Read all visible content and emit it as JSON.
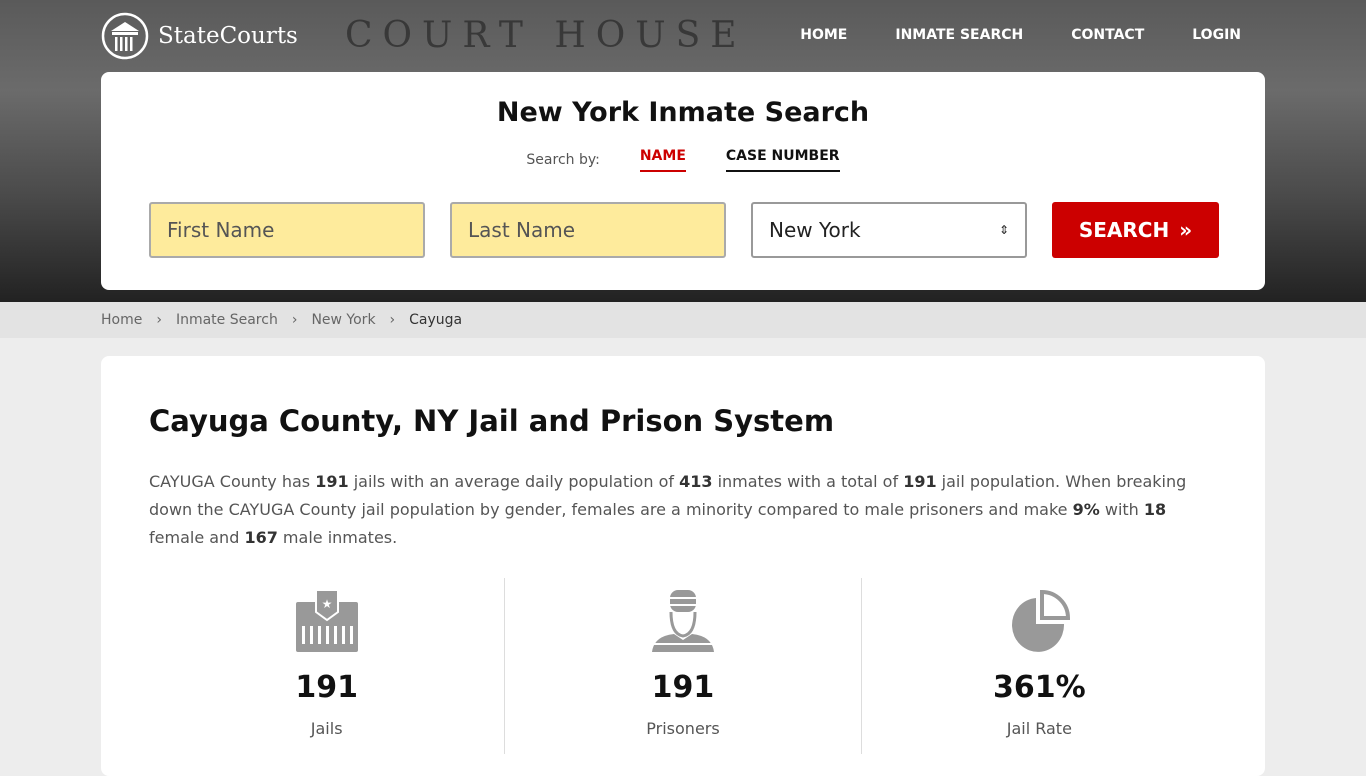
{
  "header": {
    "brand": "StateCourts",
    "bg_text": "COURT HOUSE",
    "nav": [
      "HOME",
      "INMATE SEARCH",
      "CONTACT",
      "LOGIN"
    ]
  },
  "search": {
    "title": "New York Inmate Search",
    "search_by": "Search by:",
    "tabs": [
      "NAME",
      "CASE NUMBER"
    ],
    "first_name_placeholder": "First Name",
    "last_name_placeholder": "Last Name",
    "state": "New York",
    "button": "SEARCH"
  },
  "breadcrumb": [
    "Home",
    "Inmate Search",
    "New York",
    "Cayuga"
  ],
  "main": {
    "title": "Cayuga County, NY Jail and Prison System",
    "p": [
      "CAYUGA County has ",
      "191",
      " jails with an average daily population of ",
      "413",
      " inmates with a total of ",
      "191",
      " jail population. When breaking down the CAYUGA County jail population by gender, females are a minority compared to male prisoners and make ",
      "9%",
      " with ",
      "18",
      " female and ",
      "167",
      " male inmates."
    ],
    "stats": [
      {
        "value": "191",
        "label": "Jails",
        "icon": "jail-icon"
      },
      {
        "value": "191",
        "label": "Prisoners",
        "icon": "prisoner-icon"
      },
      {
        "value": "361%",
        "label": "Jail Rate",
        "icon": "pie-chart-icon"
      }
    ]
  },
  "colors": {
    "accent": "#cc0000",
    "input_bg": "#feeb9c"
  }
}
